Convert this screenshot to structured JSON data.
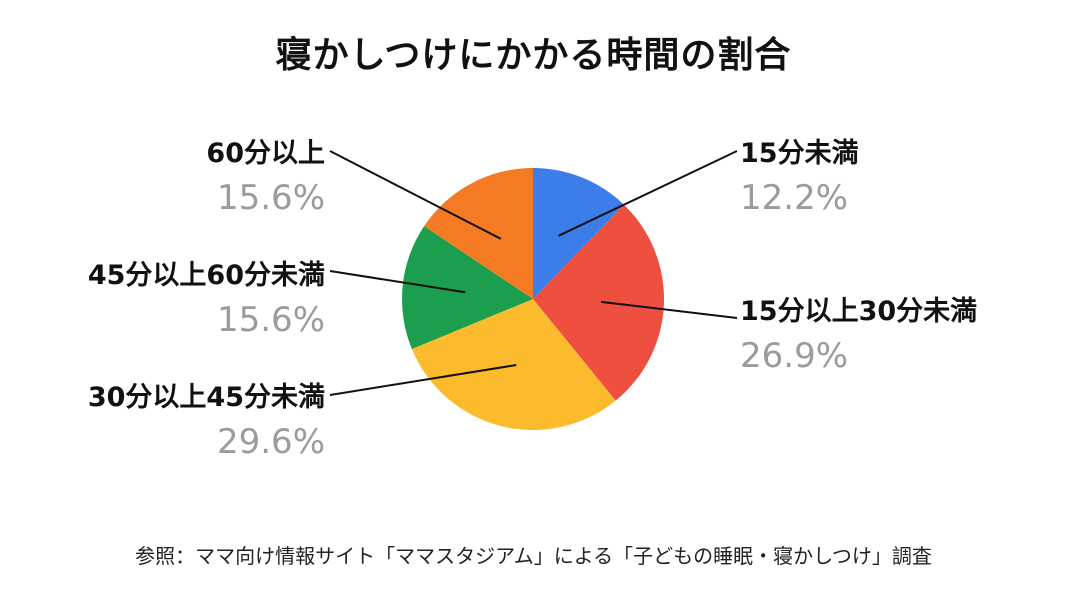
{
  "chart_data": {
    "type": "pie",
    "title": "寝かしつけにかかる時間の割合",
    "slices": [
      {
        "label": "15分未満",
        "value": 12.2,
        "display": "12.2%",
        "color": "#3b7ee9"
      },
      {
        "label": "15分以上30分未満",
        "value": 26.9,
        "display": "26.9%",
        "color": "#ee4f3f"
      },
      {
        "label": "30分以上45分未満",
        "value": 29.6,
        "display": "29.6%",
        "color": "#fbbb2c"
      },
      {
        "label": "45分以上60分未満",
        "value": 15.6,
        "display": "15.6%",
        "color": "#1b9e4d"
      },
      {
        "label": "60分以上",
        "value": 15.6,
        "display": "15.6%",
        "color": "#f57a24"
      }
    ],
    "start": "12 o'clock",
    "direction": "clockwise",
    "note": "参照：ママ向け情報サイト「ママスタジアム」による「子どもの睡眠・寝かしつけ」調査"
  }
}
